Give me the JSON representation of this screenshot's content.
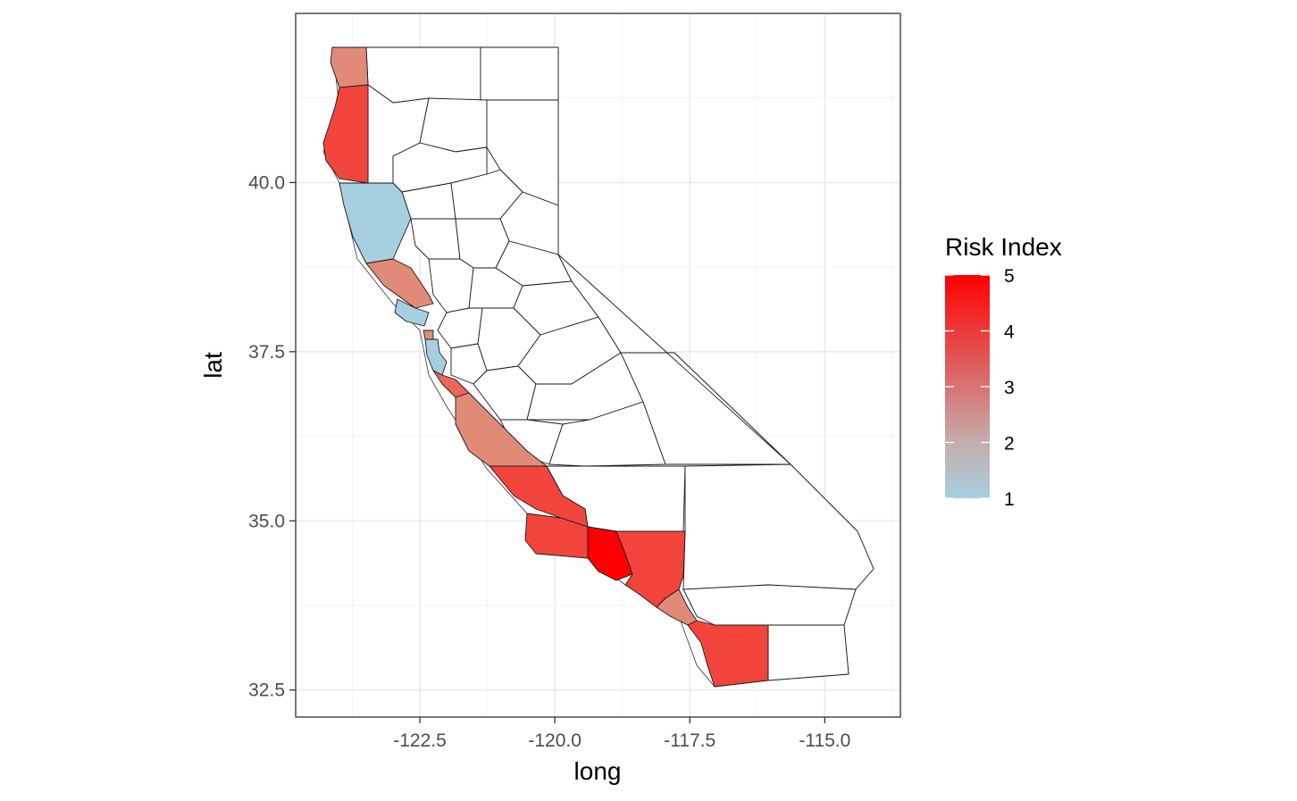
{
  "chart_data": {
    "type": "choropleth",
    "title": "",
    "xlabel": "long",
    "ylabel": "lat",
    "xlim": [
      -124.8,
      -113.6
    ],
    "ylim": [
      32.1,
      42.5
    ],
    "x_ticks": [
      -122.5,
      -120.0,
      -117.5,
      -115.0
    ],
    "x_tick_labels": [
      "-122.5",
      "-120.0",
      "-117.5",
      "-115.0"
    ],
    "y_ticks": [
      32.5,
      35.0,
      37.5,
      40.0
    ],
    "y_tick_labels": [
      "32.5",
      "35.0",
      "37.5",
      "40.0"
    ],
    "grid": true,
    "legend": {
      "title": "Risk Index",
      "position": "right",
      "min": 1,
      "max": 5,
      "breaks": [
        1,
        2,
        3,
        4,
        5
      ],
      "break_labels": [
        "1",
        "2",
        "3",
        "4",
        "5"
      ],
      "low_color": "#a6cfe0",
      "high_color": "#ff0000"
    },
    "colored_regions": [
      {
        "value": 3
      },
      {
        "value": 4
      },
      {
        "value": 1
      },
      {
        "value": 3
      },
      {
        "value": 1
      },
      {
        "value": 3
      },
      {
        "value": 1
      },
      {
        "value": 3.5
      },
      {
        "value": 3
      },
      {
        "value": 4
      },
      {
        "value": 4
      },
      {
        "value": 5
      },
      {
        "value": 4
      },
      {
        "value": 3
      },
      {
        "value": 4
      }
    ]
  }
}
